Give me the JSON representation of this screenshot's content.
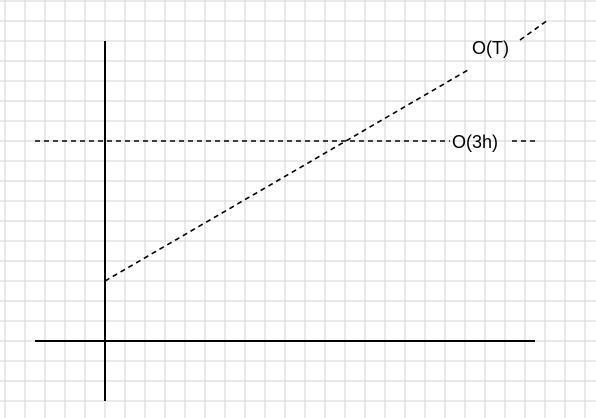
{
  "diagram": {
    "labels": {
      "line_T": "O(T)",
      "line_3h": "O(3h)"
    },
    "colors": {
      "background": "#ffffff",
      "grid": "#d6d6d6",
      "axes": "#000000",
      "lines": "#000000"
    },
    "grid": true,
    "axes": "cross",
    "dashed_lines": [
      {
        "label_key": "line_T",
        "kind": "increasing"
      },
      {
        "label_key": "line_3h",
        "kind": "horizontal"
      }
    ]
  }
}
